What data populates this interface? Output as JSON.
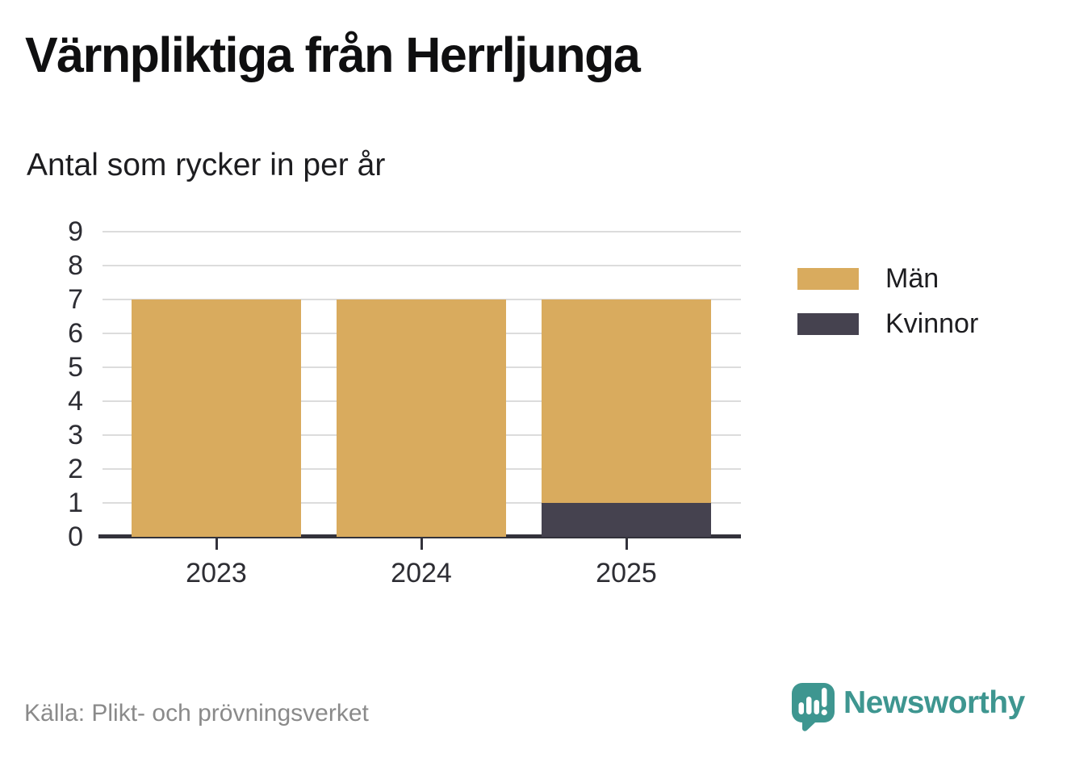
{
  "title": "Värnpliktiga från Herrljunga",
  "subtitle": "Antal som rycker in per år",
  "source": "Källa: Plikt- och prövningsverket",
  "brand": {
    "name": "Newsworthy",
    "color": "#3E9690",
    "icon": "speech-bubble-bar-chart-exclamation-icon"
  },
  "colors": {
    "men": "#D9AB5E",
    "women": "#45424F",
    "axis": "#33323B",
    "gridline": "#DCDCDC",
    "title_text": "#0F0F10",
    "tick_text": "#2D2D33",
    "source_text": "#8A8A8A",
    "background": "#FFFFFF"
  },
  "chart_data": {
    "type": "bar",
    "stacked": true,
    "title": "Värnpliktiga från Herrljunga",
    "subtitle": "Antal som rycker in per år",
    "categories": [
      "2023",
      "2024",
      "2025"
    ],
    "series": [
      {
        "name": "Män",
        "color": "#D9AB5E",
        "values": [
          7,
          7,
          6
        ]
      },
      {
        "name": "Kvinnor",
        "color": "#45424F",
        "values": [
          0,
          0,
          1
        ]
      }
    ],
    "totals": [
      7,
      7,
      7
    ],
    "xlabel": "",
    "ylabel": "",
    "ylim": [
      0,
      9
    ],
    "yticks": [
      0,
      1,
      2,
      3,
      4,
      5,
      6,
      7,
      8,
      9
    ],
    "grid": true,
    "legend_position": "right"
  }
}
